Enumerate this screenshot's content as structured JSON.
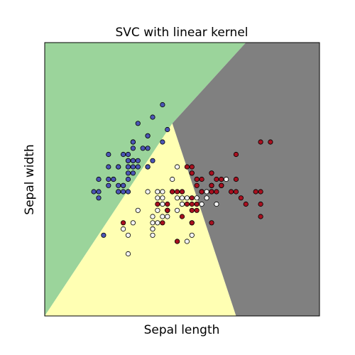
{
  "chart_data": {
    "type": "scatter",
    "title": "SVC with linear kernel",
    "xlabel": "Sepal length",
    "ylabel": "Sepal width",
    "xlim": [
      3.3,
      8.9
    ],
    "ylim": [
      1.0,
      5.4
    ],
    "grid": false,
    "legend": "none",
    "ticks_visible": false,
    "regions": [
      {
        "class": 0,
        "color": "#9bd49b",
        "polygon": [
          [
            3.3,
            1.0
          ],
          [
            3.3,
            5.4
          ],
          [
            7.4,
            5.4
          ],
          [
            5.9,
            4.1
          ]
        ]
      },
      {
        "class": 1,
        "color": "#ffffb3",
        "polygon": [
          [
            3.3,
            1.0
          ],
          [
            5.9,
            4.1
          ],
          [
            7.2,
            1.0
          ]
        ]
      },
      {
        "class": 2,
        "color": "#808080",
        "polygon": [
          [
            7.4,
            5.4
          ],
          [
            8.9,
            5.4
          ],
          [
            8.9,
            1.0
          ],
          [
            7.2,
            1.0
          ],
          [
            5.9,
            4.1
          ]
        ]
      }
    ],
    "series": [
      {
        "class": 0,
        "color": "#4b55b6",
        "points": [
          [
            5.1,
            3.5
          ],
          [
            4.9,
            3.0
          ],
          [
            4.7,
            3.2
          ],
          [
            4.6,
            3.1
          ],
          [
            5.0,
            3.6
          ],
          [
            5.4,
            3.9
          ],
          [
            4.6,
            3.4
          ],
          [
            5.0,
            3.4
          ],
          [
            4.4,
            2.9
          ],
          [
            4.9,
            3.1
          ],
          [
            5.4,
            3.7
          ],
          [
            4.8,
            3.4
          ],
          [
            4.8,
            3.0
          ],
          [
            4.3,
            3.0
          ],
          [
            5.8,
            4.0
          ],
          [
            5.7,
            4.4
          ],
          [
            5.4,
            3.9
          ],
          [
            5.1,
            3.5
          ],
          [
            5.7,
            3.8
          ],
          [
            5.1,
            3.8
          ],
          [
            5.4,
            3.4
          ],
          [
            5.1,
            3.7
          ],
          [
            4.6,
            3.6
          ],
          [
            5.1,
            3.3
          ],
          [
            4.8,
            3.4
          ],
          [
            5.0,
            3.0
          ],
          [
            5.0,
            3.4
          ],
          [
            5.2,
            3.5
          ],
          [
            5.2,
            3.4
          ],
          [
            4.7,
            3.2
          ],
          [
            4.8,
            3.1
          ],
          [
            5.4,
            3.4
          ],
          [
            5.2,
            4.1
          ],
          [
            5.5,
            4.2
          ],
          [
            4.9,
            3.1
          ],
          [
            5.0,
            3.2
          ],
          [
            5.5,
            3.5
          ],
          [
            4.9,
            3.6
          ],
          [
            4.4,
            3.0
          ],
          [
            5.1,
            3.4
          ],
          [
            5.0,
            3.5
          ],
          [
            4.5,
            2.3
          ],
          [
            4.4,
            3.2
          ],
          [
            5.0,
            3.5
          ],
          [
            5.1,
            3.8
          ],
          [
            4.8,
            3.0
          ],
          [
            5.1,
            3.8
          ],
          [
            4.6,
            3.2
          ],
          [
            5.3,
            3.7
          ],
          [
            5.0,
            3.3
          ]
        ]
      },
      {
        "class": 1,
        "color": "#f3f3f3",
        "points": [
          [
            7.0,
            3.2
          ],
          [
            6.4,
            3.2
          ],
          [
            6.9,
            3.1
          ],
          [
            5.5,
            2.3
          ],
          [
            6.5,
            2.8
          ],
          [
            5.7,
            2.8
          ],
          [
            6.3,
            3.3
          ],
          [
            4.9,
            2.4
          ],
          [
            6.6,
            2.9
          ],
          [
            5.2,
            2.7
          ],
          [
            5.0,
            2.0
          ],
          [
            5.9,
            3.0
          ],
          [
            6.0,
            2.2
          ],
          [
            6.1,
            2.9
          ],
          [
            5.6,
            2.9
          ],
          [
            6.7,
            3.1
          ],
          [
            5.6,
            3.0
          ],
          [
            5.8,
            2.7
          ],
          [
            6.2,
            2.2
          ],
          [
            5.6,
            2.5
          ],
          [
            5.9,
            3.2
          ],
          [
            6.1,
            2.8
          ],
          [
            6.3,
            2.5
          ],
          [
            6.1,
            2.8
          ],
          [
            6.4,
            2.9
          ],
          [
            6.6,
            3.0
          ],
          [
            6.8,
            2.8
          ],
          [
            6.7,
            3.0
          ],
          [
            6.0,
            2.9
          ],
          [
            5.7,
            2.6
          ],
          [
            5.5,
            2.4
          ],
          [
            5.5,
            2.4
          ],
          [
            5.8,
            2.7
          ],
          [
            6.0,
            2.7
          ],
          [
            5.4,
            3.0
          ],
          [
            6.0,
            3.4
          ],
          [
            6.7,
            3.1
          ],
          [
            6.3,
            2.3
          ],
          [
            5.6,
            3.0
          ],
          [
            5.5,
            2.5
          ],
          [
            5.5,
            2.6
          ],
          [
            6.1,
            3.0
          ],
          [
            5.8,
            2.6
          ],
          [
            5.0,
            2.3
          ],
          [
            5.6,
            2.7
          ],
          [
            5.7,
            3.0
          ],
          [
            5.7,
            2.9
          ],
          [
            6.2,
            2.9
          ],
          [
            5.1,
            2.5
          ],
          [
            5.7,
            2.8
          ]
        ]
      },
      {
        "class": 2,
        "color": "#a8101f",
        "points": [
          [
            6.3,
            3.3
          ],
          [
            5.8,
            2.7
          ],
          [
            7.1,
            3.0
          ],
          [
            6.3,
            2.9
          ],
          [
            6.5,
            3.0
          ],
          [
            7.6,
            3.0
          ],
          [
            4.9,
            2.5
          ],
          [
            7.3,
            2.9
          ],
          [
            6.7,
            2.5
          ],
          [
            7.2,
            3.6
          ],
          [
            6.5,
            3.2
          ],
          [
            6.4,
            2.7
          ],
          [
            6.8,
            3.0
          ],
          [
            5.7,
            2.5
          ],
          [
            5.8,
            2.8
          ],
          [
            6.4,
            3.2
          ],
          [
            6.5,
            3.0
          ],
          [
            7.7,
            3.8
          ],
          [
            7.7,
            2.6
          ],
          [
            6.0,
            2.2
          ],
          [
            6.9,
            3.2
          ],
          [
            5.6,
            2.8
          ],
          [
            7.7,
            2.8
          ],
          [
            6.3,
            2.7
          ],
          [
            6.7,
            3.3
          ],
          [
            7.2,
            3.2
          ],
          [
            6.2,
            2.8
          ],
          [
            6.1,
            3.0
          ],
          [
            6.4,
            2.8
          ],
          [
            7.2,
            3.0
          ],
          [
            7.4,
            2.8
          ],
          [
            7.9,
            3.8
          ],
          [
            6.4,
            2.8
          ],
          [
            6.3,
            2.8
          ],
          [
            6.1,
            2.6
          ],
          [
            7.7,
            3.0
          ],
          [
            6.3,
            3.4
          ],
          [
            6.4,
            3.1
          ],
          [
            6.0,
            3.0
          ],
          [
            6.9,
            3.1
          ],
          [
            6.7,
            3.1
          ],
          [
            6.9,
            3.1
          ],
          [
            5.8,
            2.7
          ],
          [
            6.8,
            3.2
          ],
          [
            6.7,
            3.3
          ],
          [
            6.7,
            3.0
          ],
          [
            6.3,
            2.5
          ],
          [
            6.5,
            3.0
          ],
          [
            6.2,
            3.4
          ],
          [
            5.9,
            3.0
          ]
        ]
      }
    ]
  }
}
